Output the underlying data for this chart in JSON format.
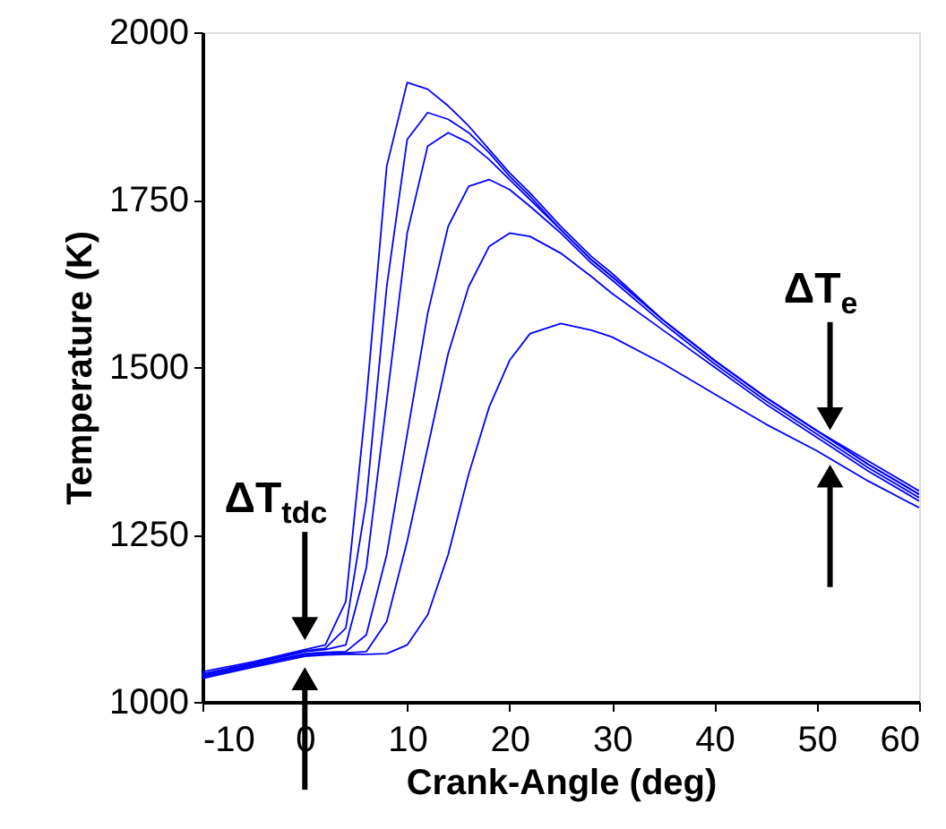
{
  "chart_data": {
    "type": "line",
    "xlabel": "Crank-Angle (deg)",
    "ylabel": "Temperature (K)",
    "x": [
      -10,
      -5,
      0,
      2,
      4,
      6,
      8,
      10,
      12,
      14,
      16,
      18,
      20,
      22,
      25,
      28,
      30,
      35,
      40,
      45,
      50,
      55,
      60
    ],
    "series": [
      {
        "color": "#0000ff",
        "values": [
          1045,
          1060,
          1078,
          1085,
          1150,
          1450,
          1800,
          1925,
          1915,
          1890,
          1860,
          1825,
          1790,
          1760,
          1710,
          1665,
          1640,
          1570,
          1510,
          1455,
          1405,
          1360,
          1315
        ]
      },
      {
        "color": "#0000ff",
        "values": [
          1042,
          1058,
          1076,
          1080,
          1110,
          1300,
          1620,
          1840,
          1880,
          1870,
          1850,
          1820,
          1785,
          1755,
          1705,
          1660,
          1635,
          1570,
          1510,
          1455,
          1405,
          1355,
          1310
        ]
      },
      {
        "color": "#0000ff",
        "values": [
          1040,
          1057,
          1075,
          1078,
          1085,
          1200,
          1450,
          1700,
          1830,
          1850,
          1835,
          1810,
          1780,
          1750,
          1705,
          1660,
          1635,
          1570,
          1510,
          1455,
          1405,
          1355,
          1310
        ]
      },
      {
        "color": "#0000ff",
        "values": [
          1038,
          1055,
          1072,
          1074,
          1075,
          1100,
          1220,
          1400,
          1580,
          1710,
          1770,
          1780,
          1765,
          1740,
          1700,
          1655,
          1630,
          1565,
          1505,
          1450,
          1400,
          1350,
          1305
        ]
      },
      {
        "color": "#0000ff",
        "values": [
          1036,
          1054,
          1070,
          1072,
          1073,
          1075,
          1120,
          1240,
          1380,
          1520,
          1620,
          1680,
          1700,
          1695,
          1670,
          1635,
          1610,
          1555,
          1500,
          1445,
          1395,
          1345,
          1300
        ]
      },
      {
        "color": "#0000ff",
        "values": [
          1035,
          1052,
          1068,
          1070,
          1071,
          1071,
          1072,
          1085,
          1130,
          1220,
          1340,
          1440,
          1510,
          1550,
          1565,
          1555,
          1545,
          1505,
          1460,
          1415,
          1375,
          1330,
          1290
        ]
      }
    ],
    "xlim": [
      -10,
      60
    ],
    "ylim": [
      1000,
      2000
    ],
    "xticks": [
      -10,
      0,
      10,
      20,
      30,
      40,
      50,
      60
    ],
    "yticks": [
      1000,
      1250,
      1500,
      1750,
      2000
    ],
    "annotations": [
      {
        "text": "ΔT$_{tdc}$",
        "x": 0,
        "y": 1072
      },
      {
        "text": "ΔT$_{e}$",
        "x": 51.3,
        "y": 1380
      }
    ]
  }
}
